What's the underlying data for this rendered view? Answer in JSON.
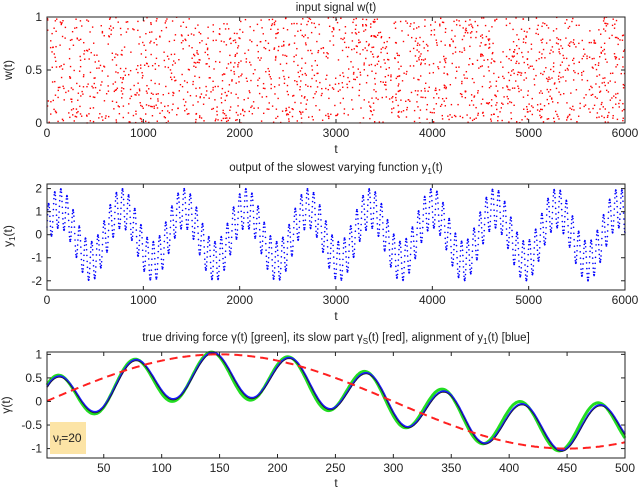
{
  "chart_data": [
    {
      "type": "scatter",
      "title": "input signal w(t)",
      "xlabel": "t",
      "ylabel": "w(t)",
      "xlim": [
        0,
        6000
      ],
      "ylim": [
        0,
        1
      ],
      "xticks": [
        0,
        1000,
        2000,
        3000,
        4000,
        5000,
        6000
      ],
      "yticks": [
        0,
        0.5,
        1
      ],
      "series": [
        {
          "name": "w(t)",
          "color": "#ff0000",
          "distribution": "uniform random in [0,1]",
          "count": 1800,
          "seed": 7
        }
      ]
    },
    {
      "type": "line",
      "title_parts": [
        "output of the slowest varying function y",
        "1",
        "(t)"
      ],
      "xlabel": "t",
      "ylabel_parts": [
        "y",
        "1",
        "(t)"
      ],
      "xlim": [
        0,
        6000
      ],
      "ylim": [
        -2.4,
        2.2
      ],
      "xticks": [
        0,
        1000,
        2000,
        3000,
        4000,
        5000,
        6000
      ],
      "yticks": [
        -2,
        -1,
        0,
        1,
        2
      ],
      "series": [
        {
          "name": "y1(t)",
          "color": "#0000ff",
          "style": "dotted",
          "model": {
            "slow_amp": 1.15,
            "slow_period": 645,
            "slow_phase": -30,
            "fast_amp": 0.85,
            "fast_period": 64
          }
        }
      ]
    },
    {
      "type": "line",
      "title_parts": [
        "true driving force γ(t) [green], its slow part γ",
        "S",
        "(t) [red], alignment of y",
        "1",
        "(t) [blue]"
      ],
      "xlabel": "t",
      "ylabel": "γ(t)",
      "xlim": [
        1,
        500
      ],
      "ylim": [
        -1.2,
        1.05
      ],
      "xticks": [
        50,
        100,
        150,
        200,
        250,
        300,
        350,
        400,
        450,
        500
      ],
      "yticks": [
        -1,
        -0.5,
        0,
        0.5,
        1
      ],
      "annotation": {
        "parts": [
          "ν",
          "f",
          "=20"
        ],
        "bg": "#fce4a6"
      },
      "series": [
        {
          "name": "gamma (true driving force)",
          "color": "#22dd22",
          "style": "solid-thick",
          "model": {
            "slow_amp": 0.55,
            "fast_amp": 0.5,
            "fast_period": 66.7,
            "fast_peak": 143
          }
        },
        {
          "name": "gamma_S (slow part)",
          "color": "#ff2020",
          "style": "dashed",
          "model": {
            "peak_t": 150,
            "half_period": 300
          }
        },
        {
          "name": "alignment of y1",
          "color": "#1a1aff",
          "style": "solid",
          "model": {
            "slow_amp": 0.57,
            "fast_amp": 0.47,
            "fast_period": 66.9,
            "fast_peak": 144
          }
        }
      ]
    }
  ]
}
